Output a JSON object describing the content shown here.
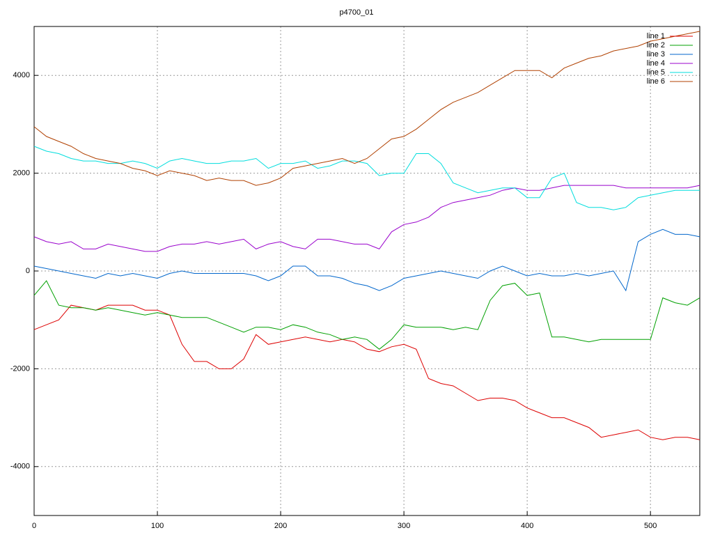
{
  "chart_data": {
    "type": "line",
    "title": "p4700_01",
    "x": [
      0,
      10,
      20,
      30,
      40,
      50,
      60,
      70,
      80,
      90,
      100,
      110,
      120,
      130,
      140,
      150,
      160,
      170,
      180,
      190,
      200,
      210,
      220,
      230,
      240,
      250,
      260,
      270,
      280,
      290,
      300,
      310,
      320,
      330,
      340,
      350,
      360,
      370,
      380,
      390,
      400,
      410,
      420,
      430,
      440,
      450,
      460,
      470,
      480,
      490,
      500,
      510,
      520,
      530,
      540
    ],
    "xlim": [
      0,
      540
    ],
    "xticks": [
      0,
      100,
      200,
      300,
      400,
      500
    ],
    "ylim": [
      -5000,
      5000
    ],
    "yticks": [
      -4000,
      -2000,
      0,
      2000,
      4000
    ],
    "grid": true,
    "legend": "top-right",
    "series": [
      {
        "name": "line 1",
        "color": "#dd0000",
        "values": [
          -1200,
          -1100,
          -1000,
          -700,
          -750,
          -800,
          -700,
          -700,
          -700,
          -800,
          -800,
          -900,
          -1500,
          -1850,
          -1850,
          -2000,
          -2000,
          -1800,
          -1300,
          -1500,
          -1450,
          -1400,
          -1350,
          -1400,
          -1450,
          -1400,
          -1450,
          -1600,
          -1650,
          -1550,
          -1500,
          -1600,
          -2200,
          -2300,
          -2350,
          -2500,
          -2650,
          -2600,
          -2600,
          -2650,
          -2800,
          -2900,
          -3000,
          -3000,
          -3100,
          -3200,
          -3400,
          -3350,
          -3300,
          -3250,
          -3400,
          -3450,
          -3400,
          -3400,
          -3450
        ]
      },
      {
        "name": "line 2",
        "color": "#00a000",
        "values": [
          -500,
          -200,
          -700,
          -750,
          -750,
          -800,
          -750,
          -800,
          -850,
          -900,
          -850,
          -900,
          -950,
          -950,
          -950,
          -1050,
          -1150,
          -1250,
          -1150,
          -1150,
          -1200,
          -1100,
          -1150,
          -1250,
          -1300,
          -1400,
          -1350,
          -1400,
          -1600,
          -1400,
          -1100,
          -1150,
          -1150,
          -1150,
          -1200,
          -1150,
          -1200,
          -600,
          -300,
          -250,
          -500,
          -450,
          -1350,
          -1350,
          -1400,
          -1450,
          -1400,
          -1400,
          -1400,
          -1400,
          -1400,
          -550,
          -650,
          -700,
          -550
        ]
      },
      {
        "name": "line 3",
        "color": "#0066cc",
        "values": [
          100,
          50,
          0,
          -50,
          -100,
          -150,
          -50,
          -100,
          -50,
          -100,
          -150,
          -50,
          0,
          -50,
          -50,
          -50,
          -50,
          -50,
          -100,
          -200,
          -100,
          100,
          100,
          -100,
          -100,
          -150,
          -250,
          -300,
          -400,
          -300,
          -150,
          -100,
          -50,
          0,
          -50,
          -100,
          -150,
          0,
          100,
          0,
          -100,
          -50,
          -100,
          -100,
          -50,
          -100,
          -50,
          0,
          -400,
          600,
          750,
          850,
          750,
          750,
          700
        ]
      },
      {
        "name": "line 4",
        "color": "#9900cc",
        "values": [
          700,
          600,
          550,
          600,
          450,
          450,
          550,
          500,
          450,
          400,
          400,
          500,
          550,
          550,
          600,
          550,
          600,
          650,
          450,
          550,
          600,
          500,
          450,
          650,
          650,
          600,
          550,
          550,
          450,
          800,
          950,
          1000,
          1100,
          1300,
          1400,
          1450,
          1500,
          1550,
          1650,
          1700,
          1650,
          1650,
          1700,
          1750,
          1750,
          1750,
          1750,
          1750,
          1700,
          1700,
          1700,
          1700,
          1700,
          1700,
          1750
        ]
      },
      {
        "name": "line 5",
        "color": "#00dddd",
        "values": [
          2550,
          2450,
          2400,
          2300,
          2250,
          2250,
          2200,
          2200,
          2250,
          2200,
          2100,
          2250,
          2300,
          2250,
          2200,
          2200,
          2250,
          2250,
          2300,
          2100,
          2200,
          2200,
          2250,
          2100,
          2150,
          2250,
          2250,
          2200,
          1950,
          2000,
          2000,
          2400,
          2400,
          2200,
          1800,
          1700,
          1600,
          1650,
          1700,
          1700,
          1500,
          1500,
          1900,
          2000,
          1400,
          1300,
          1300,
          1250,
          1300,
          1500,
          1550,
          1600,
          1650,
          1650,
          1650
        ]
      },
      {
        "name": "line 6",
        "color": "#b04000",
        "values": [
          2950,
          2750,
          2650,
          2550,
          2400,
          2300,
          2250,
          2200,
          2100,
          2050,
          1950,
          2050,
          2000,
          1950,
          1850,
          1900,
          1850,
          1850,
          1750,
          1800,
          1900,
          2100,
          2150,
          2200,
          2250,
          2300,
          2200,
          2300,
          2500,
          2700,
          2750,
          2900,
          3100,
          3300,
          3450,
          3550,
          3650,
          3800,
          3950,
          4100,
          4100,
          4100,
          3950,
          4150,
          4250,
          4350,
          4400,
          4500,
          4550,
          4600,
          4700,
          4750,
          4800,
          4850,
          4900
        ]
      }
    ]
  }
}
